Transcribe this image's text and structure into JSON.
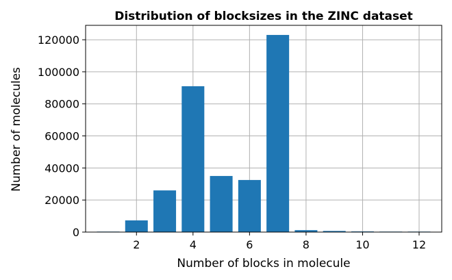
{
  "chart_data": {
    "type": "bar",
    "title": "Distribution of blocksizes in the ZINC dataset",
    "xlabel": "Number of blocks in molecule",
    "ylabel": "Number of molecules",
    "x": [
      1,
      2,
      3,
      4,
      5,
      6,
      7,
      8,
      9,
      10,
      11,
      12
    ],
    "values": [
      300,
      7300,
      26000,
      91000,
      35000,
      32500,
      123000,
      1200,
      700,
      400,
      300,
      300
    ],
    "xlim": [
      0.2,
      12.8
    ],
    "ylim": [
      0,
      129000
    ],
    "xticks": [
      2,
      4,
      6,
      8,
      10,
      12
    ],
    "yticks": [
      0,
      20000,
      40000,
      60000,
      80000,
      100000,
      120000
    ],
    "grid": true,
    "bar_color": "#1f77b4",
    "grid_color": "#b0b0b0"
  }
}
